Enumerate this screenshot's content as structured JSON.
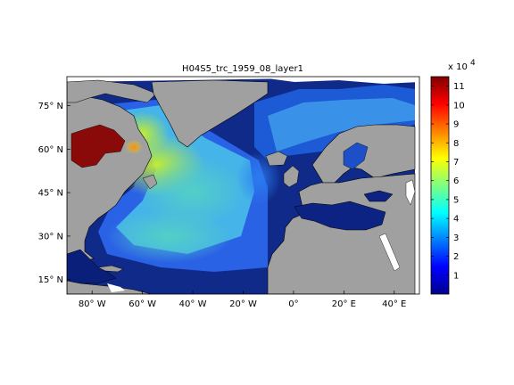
{
  "title": "H04S5_trc_1959_08_layer1",
  "map": {
    "lon_range": [
      -90,
      50
    ],
    "lat_range": [
      10,
      85
    ],
    "x_ticks": [
      {
        "value": -80,
        "label": "80° W"
      },
      {
        "value": -60,
        "label": "60° W"
      },
      {
        "value": -40,
        "label": "40° W"
      },
      {
        "value": -20,
        "label": "20° W"
      },
      {
        "value": 0,
        "label": "0°"
      },
      {
        "value": 20,
        "label": "20° E"
      },
      {
        "value": 40,
        "label": "40° E"
      }
    ],
    "y_ticks": [
      {
        "value": 75,
        "label": "75° N"
      },
      {
        "value": 60,
        "label": "60° N"
      },
      {
        "value": 45,
        "label": "45° N"
      },
      {
        "value": 30,
        "label": "30° N"
      },
      {
        "value": 15,
        "label": "15° N"
      }
    ],
    "colors": {
      "land": "#a0a0a0",
      "no_data": "#ffffff",
      "coast": "#000000"
    }
  },
  "colorbar": {
    "range": [
      0,
      11.5
    ],
    "multiplier_base": "x 10",
    "multiplier_exp": "4",
    "ticks": [
      "1",
      "2",
      "3",
      "4",
      "5",
      "6",
      "7",
      "8",
      "9",
      "10",
      "11"
    ],
    "colormap": "jet"
  }
}
